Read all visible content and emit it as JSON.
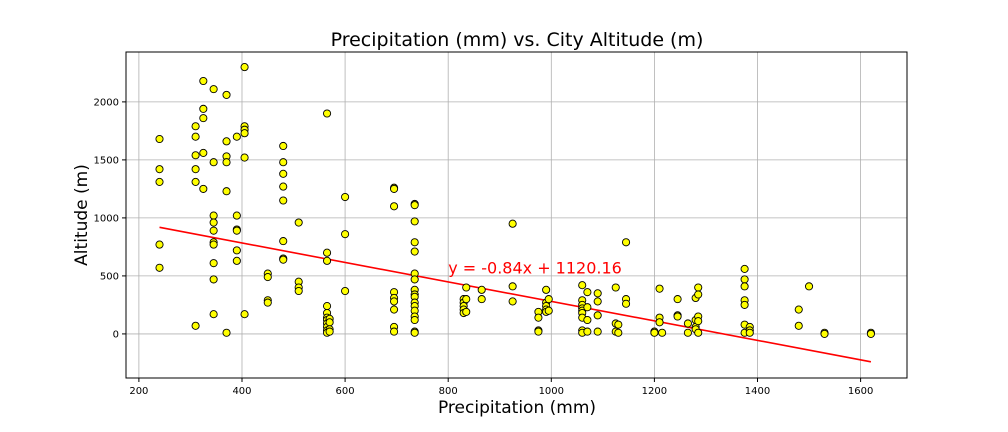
{
  "chart_data": {
    "type": "scatter",
    "title": "Precipitation (mm) vs. City Altitude (m)",
    "xlabel": "Precipitation (mm)",
    "ylabel": "Altitude (m)",
    "xlim": [
      175,
      1690
    ],
    "ylim": [
      -380,
      2430
    ],
    "xticks": [
      200,
      400,
      600,
      800,
      1000,
      1200,
      1400,
      1600
    ],
    "yticks": [
      0,
      500,
      1000,
      1500,
      2000
    ],
    "grid": true,
    "marker_color": "#ffff00",
    "marker_edge": "#000000",
    "line_color": "#ff0000",
    "regression": {
      "slope": -0.84,
      "intercept": 1120.16,
      "x_range": [
        240,
        1620
      ],
      "equation": "y = -0.84x + 1120.16",
      "label_pos": [
        800,
        520
      ]
    },
    "points": [
      [
        240,
        1680
      ],
      [
        240,
        1420
      ],
      [
        240,
        1310
      ],
      [
        240,
        770
      ],
      [
        240,
        570
      ],
      [
        310,
        1790
      ],
      [
        310,
        1700
      ],
      [
        310,
        1540
      ],
      [
        310,
        1420
      ],
      [
        310,
        1310
      ],
      [
        310,
        70
      ],
      [
        325,
        2180
      ],
      [
        325,
        1940
      ],
      [
        325,
        1860
      ],
      [
        325,
        1560
      ],
      [
        325,
        1250
      ],
      [
        345,
        2110
      ],
      [
        345,
        1480
      ],
      [
        345,
        1020
      ],
      [
        345,
        960
      ],
      [
        345,
        890
      ],
      [
        345,
        790
      ],
      [
        345,
        770
      ],
      [
        345,
        610
      ],
      [
        345,
        470
      ],
      [
        345,
        170
      ],
      [
        370,
        2060
      ],
      [
        370,
        1660
      ],
      [
        370,
        1530
      ],
      [
        370,
        1480
      ],
      [
        370,
        1230
      ],
      [
        370,
        10
      ],
      [
        390,
        1700
      ],
      [
        390,
        1020
      ],
      [
        390,
        900
      ],
      [
        390,
        890
      ],
      [
        390,
        720
      ],
      [
        390,
        630
      ],
      [
        405,
        2300
      ],
      [
        405,
        1790
      ],
      [
        405,
        1760
      ],
      [
        405,
        1730
      ],
      [
        405,
        1520
      ],
      [
        405,
        170
      ],
      [
        450,
        520
      ],
      [
        450,
        490
      ],
      [
        450,
        290
      ],
      [
        450,
        270
      ],
      [
        480,
        1620
      ],
      [
        480,
        1480
      ],
      [
        480,
        1380
      ],
      [
        480,
        1270
      ],
      [
        480,
        1150
      ],
      [
        480,
        800
      ],
      [
        480,
        650
      ],
      [
        480,
        640
      ],
      [
        510,
        960
      ],
      [
        510,
        450
      ],
      [
        510,
        400
      ],
      [
        510,
        370
      ],
      [
        565,
        1900
      ],
      [
        565,
        700
      ],
      [
        565,
        630
      ],
      [
        565,
        240
      ],
      [
        565,
        180
      ],
      [
        565,
        140
      ],
      [
        565,
        120
      ],
      [
        565,
        90
      ],
      [
        565,
        60
      ],
      [
        565,
        30
      ],
      [
        565,
        10
      ],
      [
        570,
        130
      ],
      [
        570,
        100
      ],
      [
        570,
        40
      ],
      [
        570,
        20
      ],
      [
        600,
        1180
      ],
      [
        600,
        860
      ],
      [
        600,
        370
      ],
      [
        695,
        1260
      ],
      [
        695,
        1250
      ],
      [
        695,
        1100
      ],
      [
        695,
        360
      ],
      [
        695,
        310
      ],
      [
        695,
        280
      ],
      [
        695,
        210
      ],
      [
        695,
        60
      ],
      [
        695,
        20
      ],
      [
        735,
        1120
      ],
      [
        735,
        1110
      ],
      [
        735,
        970
      ],
      [
        735,
        790
      ],
      [
        735,
        710
      ],
      [
        735,
        520
      ],
      [
        735,
        470
      ],
      [
        735,
        380
      ],
      [
        735,
        340
      ],
      [
        735,
        320
      ],
      [
        735,
        270
      ],
      [
        735,
        240
      ],
      [
        735,
        200
      ],
      [
        735,
        150
      ],
      [
        735,
        120
      ],
      [
        735,
        20
      ],
      [
        735,
        10
      ],
      [
        830,
        300
      ],
      [
        830,
        270
      ],
      [
        830,
        240
      ],
      [
        830,
        210
      ],
      [
        830,
        180
      ],
      [
        835,
        400
      ],
      [
        835,
        300
      ],
      [
        835,
        190
      ],
      [
        865,
        380
      ],
      [
        865,
        300
      ],
      [
        925,
        950
      ],
      [
        925,
        410
      ],
      [
        925,
        280
      ],
      [
        975,
        190
      ],
      [
        975,
        140
      ],
      [
        975,
        30
      ],
      [
        975,
        20
      ],
      [
        990,
        380
      ],
      [
        990,
        270
      ],
      [
        990,
        240
      ],
      [
        990,
        210
      ],
      [
        990,
        190
      ],
      [
        995,
        300
      ],
      [
        995,
        200
      ],
      [
        1060,
        420
      ],
      [
        1060,
        290
      ],
      [
        1060,
        250
      ],
      [
        1060,
        220
      ],
      [
        1060,
        200
      ],
      [
        1060,
        180
      ],
      [
        1060,
        140
      ],
      [
        1060,
        30
      ],
      [
        1060,
        10
      ],
      [
        1070,
        360
      ],
      [
        1070,
        230
      ],
      [
        1070,
        120
      ],
      [
        1070,
        20
      ],
      [
        1090,
        350
      ],
      [
        1090,
        280
      ],
      [
        1090,
        160
      ],
      [
        1090,
        20
      ],
      [
        1125,
        400
      ],
      [
        1125,
        90
      ],
      [
        1125,
        20
      ],
      [
        1130,
        80
      ],
      [
        1130,
        10
      ],
      [
        1145,
        790
      ],
      [
        1145,
        300
      ],
      [
        1145,
        260
      ],
      [
        1200,
        20
      ],
      [
        1200,
        10
      ],
      [
        1210,
        390
      ],
      [
        1210,
        140
      ],
      [
        1210,
        100
      ],
      [
        1215,
        10
      ],
      [
        1245,
        300
      ],
      [
        1245,
        160
      ],
      [
        1245,
        150
      ],
      [
        1265,
        90
      ],
      [
        1265,
        10
      ],
      [
        1280,
        310
      ],
      [
        1280,
        120
      ],
      [
        1280,
        60
      ],
      [
        1280,
        40
      ],
      [
        1285,
        400
      ],
      [
        1285,
        340
      ],
      [
        1285,
        150
      ],
      [
        1285,
        110
      ],
      [
        1285,
        10
      ],
      [
        1375,
        560
      ],
      [
        1375,
        470
      ],
      [
        1375,
        410
      ],
      [
        1375,
        290
      ],
      [
        1375,
        250
      ],
      [
        1375,
        80
      ],
      [
        1375,
        10
      ],
      [
        1385,
        60
      ],
      [
        1385,
        30
      ],
      [
        1385,
        10
      ],
      [
        1480,
        210
      ],
      [
        1480,
        70
      ],
      [
        1500,
        410
      ],
      [
        1530,
        10
      ],
      [
        1530,
        0
      ],
      [
        1620,
        10
      ],
      [
        1620,
        0
      ]
    ]
  }
}
